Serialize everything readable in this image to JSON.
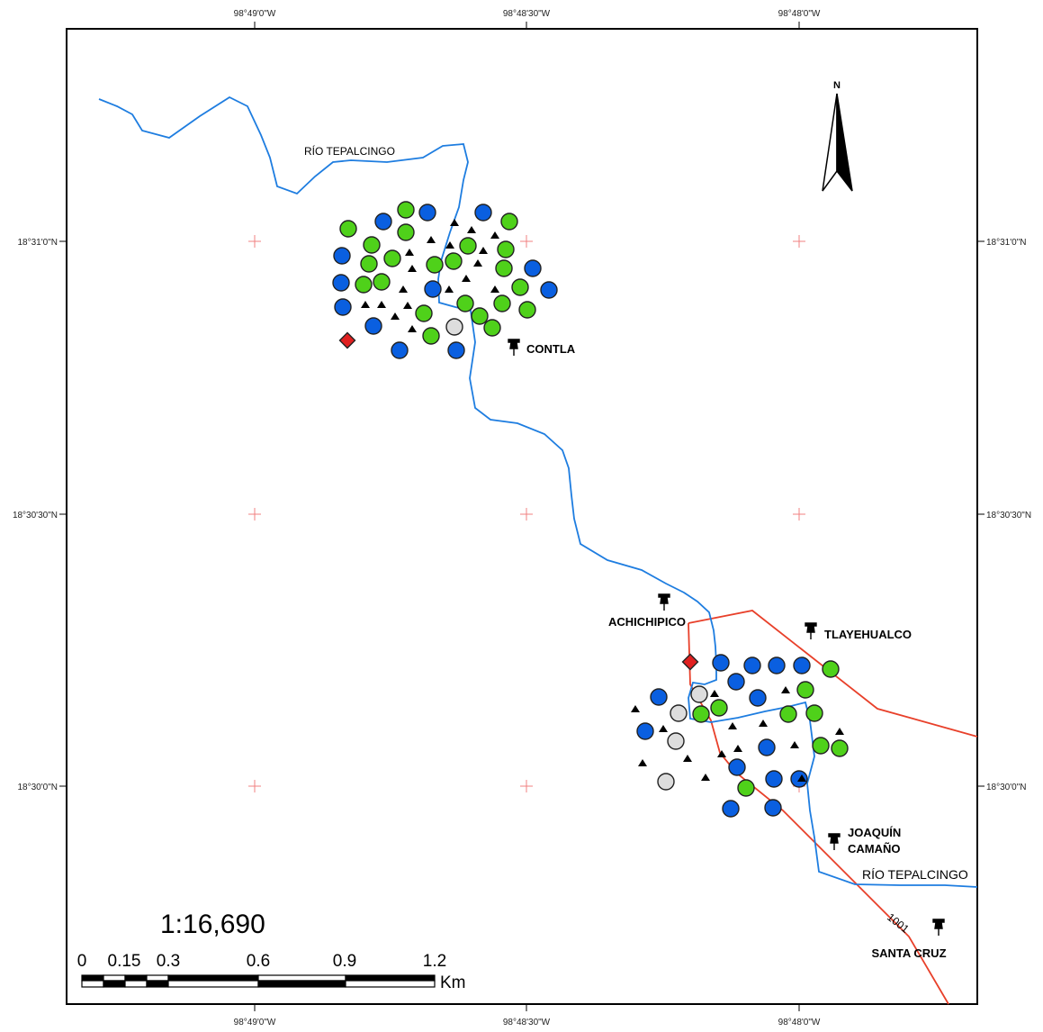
{
  "coordinates": {
    "top": [
      "98°49'0\"W",
      "98°48'30\"W",
      "98°48'0\"W"
    ],
    "bottom": [
      "98°49'0\"W",
      "98°48'30\"W",
      "98°48'0\"W"
    ],
    "left": [
      "18°31'0\"N",
      "18°30'30\"N",
      "18°30'0\"N"
    ],
    "right": [
      "18°31'0\"N",
      "18°30'30\"N",
      "18°30'0\"N"
    ]
  },
  "north_arrow": {
    "label": "N"
  },
  "rivers": {
    "label_upper": "RÍO TEPALCINGO",
    "label_lower": "RÍO TEPALCINGO"
  },
  "road": {
    "label": "1001"
  },
  "places": [
    {
      "name": "CONTLA"
    },
    {
      "name": "ACHICHIPICO"
    },
    {
      "name": "TLAYEHUALCO"
    },
    {
      "name": "JOAQUÍN",
      "name2": "CAMAÑO"
    },
    {
      "name": "SANTA CRUZ"
    }
  ],
  "scale": {
    "ratio": "1:16,690",
    "ticks": [
      "0",
      "0.15",
      "0.3",
      "0.6",
      "0.9",
      "1.2"
    ],
    "unit": "Km"
  },
  "colors": {
    "river": "#1e7de0",
    "road": "#e8402a",
    "green_circle": "#4fd11a",
    "blue_circle": "#0a5fe0",
    "gray_circle": "#dddddd",
    "diamond": "#e02020",
    "grid_cross": "#f08080"
  }
}
